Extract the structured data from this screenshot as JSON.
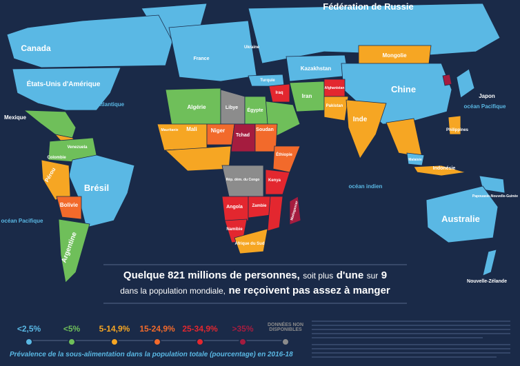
{
  "map": {
    "labels": [
      "Fédération de Russie",
      "Canada",
      "États-Unis d'Amérique",
      "Mexique",
      "océan Atlantique",
      "océan Pacifique",
      "océan Pacifique",
      "océan indien",
      "Chine",
      "Mongolie",
      "Kazakhstan",
      "Inde",
      "Japon",
      "Brésil",
      "Bolivie",
      "Pérou",
      "Argentine",
      "Colombie",
      "Venezuela",
      "Algérie",
      "Libye",
      "Égypte",
      "Mali",
      "Niger",
      "Tchad",
      "Soudan",
      "Éthiopie",
      "Kenya",
      "Rép. dém. du Congo",
      "Angola",
      "Zambie",
      "Namibie",
      "Afrique du Sud",
      "Madagascar",
      "Indonésie",
      "Australie",
      "Nouvelle-Zélande",
      "Papouasie-Nouvelle-Guinée",
      "Iran",
      "Iraq",
      "Afghanistan",
      "Pakistan",
      "Turquie",
      "Ukraine",
      "France",
      "Philippines",
      "Malaisie",
      "Mauritanie"
    ]
  },
  "headline": {
    "line1": [
      "Quelque 821 millions de personnes,",
      "soit plus",
      "d'une",
      "sur",
      "9"
    ],
    "line2": [
      "dans la population mondiale,",
      "ne reçoivent pas assez à manger"
    ]
  },
  "legend": {
    "items": [
      {
        "label": "<2,5%",
        "color": "#5ab8e4"
      },
      {
        "label": "<5%",
        "color": "#6fbf5a"
      },
      {
        "label": "5-14,9%",
        "color": "#f6a623"
      },
      {
        "label": "15-24,9%",
        "color": "#f26a2b"
      },
      {
        "label": "25-34,9%",
        "color": "#e3272f"
      },
      {
        "label": ">35%",
        "color": "#a51c3f"
      },
      {
        "label": "DONNÉES NON DISPONIBLES",
        "color": "#8c8c8c"
      }
    ]
  },
  "caption": "Prévalence de la sous-alimentation dans la population totale (pourcentage) en 2016-18"
}
